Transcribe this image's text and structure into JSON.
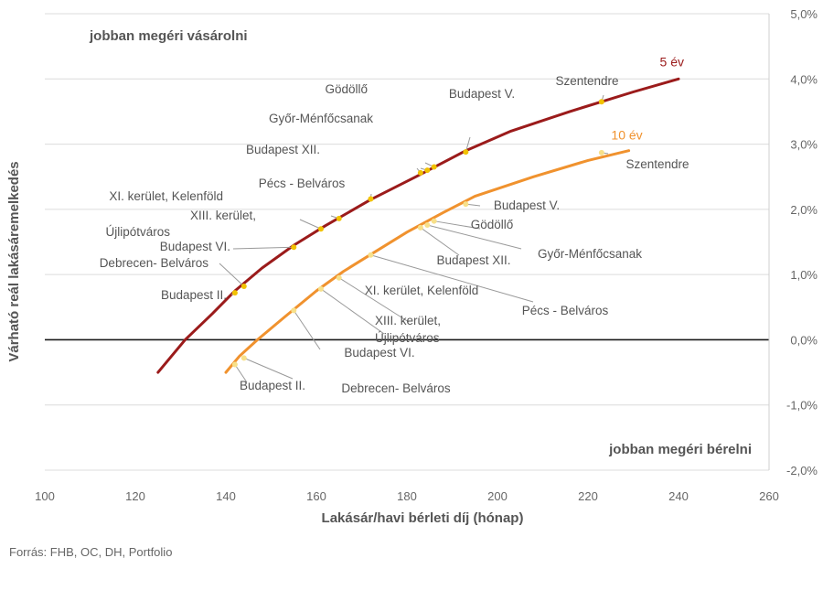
{
  "chart_data": {
    "type": "line",
    "xlabel": "Lakásár/havi bérleti díj (hónap)",
    "ylabel": "Várható reál lakásáremelkedés",
    "xlim": [
      100,
      260
    ],
    "ylim": [
      -2,
      5
    ],
    "x_ticks": [
      "100",
      "120",
      "140",
      "160",
      "180",
      "200",
      "220",
      "240",
      "260"
    ],
    "y_ticks": [
      "-2,0%",
      "-1,0%",
      "0,0%",
      "1,0%",
      "2,0%",
      "3,0%",
      "4,0%",
      "5,0%"
    ],
    "y_axis_position": "right",
    "grid": "horizontal",
    "annotations": {
      "top_left": "jobban megéri vásárolni",
      "bottom_right": "jobban megéri bérelni"
    },
    "series": [
      {
        "name": "5 év",
        "color": "#9b1b1b",
        "x": [
          125,
          131,
          137,
          142,
          148,
          155,
          162,
          172,
          182,
          193,
          203,
          216,
          230,
          240
        ],
        "y": [
          -0.5,
          0.0,
          0.4,
          0.75,
          1.1,
          1.45,
          1.75,
          2.15,
          2.5,
          2.9,
          3.2,
          3.5,
          3.8,
          4.0
        ]
      },
      {
        "name": "10 év",
        "color": "#f0922e",
        "x": [
          140,
          143,
          147,
          153,
          160,
          166,
          173,
          180,
          188,
          195,
          208,
          220,
          229
        ],
        "y": [
          -0.5,
          -0.25,
          0.0,
          0.35,
          0.75,
          1.05,
          1.35,
          1.65,
          1.95,
          2.2,
          2.5,
          2.75,
          2.9
        ]
      }
    ],
    "points": [
      {
        "series": 0,
        "label": "Budapest II.",
        "x": 142,
        "y": 0.72,
        "color": "#f2c200"
      },
      {
        "series": 0,
        "label": "Debrecen- Belváros",
        "x": 144,
        "y": 0.82,
        "color": "#f2c200"
      },
      {
        "series": 0,
        "label": "Budapest VI.",
        "x": 155,
        "y": 1.42,
        "color": "#f2c200"
      },
      {
        "series": 0,
        "label": "XIII. kerület, Újlipótváros",
        "x": 161,
        "y": 1.7,
        "color": "#f2c200"
      },
      {
        "series": 0,
        "label": "XI. kerület, Kelenföld",
        "x": 165,
        "y": 1.86,
        "color": "#f2c200"
      },
      {
        "series": 0,
        "label": "Pécs - Belváros",
        "x": 172,
        "y": 2.16,
        "color": "#f2c200"
      },
      {
        "series": 0,
        "label": "Budapest XII.",
        "x": 183,
        "y": 2.56,
        "color": "#f2c200"
      },
      {
        "series": 0,
        "label": "Győr-Ménfőcsanak",
        "x": 184.5,
        "y": 2.6,
        "color": "#f2c200"
      },
      {
        "series": 0,
        "label": "Gödöllő",
        "x": 186,
        "y": 2.65,
        "color": "#f2c200"
      },
      {
        "series": 0,
        "label": "Budapest V.",
        "x": 193,
        "y": 2.88,
        "color": "#f2c200"
      },
      {
        "series": 0,
        "label": "Szentendre",
        "x": 223,
        "y": 3.65,
        "color": "#f2c200"
      },
      {
        "series": 1,
        "label": "Budapest II.",
        "x": 142,
        "y": -0.38,
        "color": "#f7e08a"
      },
      {
        "series": 1,
        "label": "Debrecen- Belváros",
        "x": 144,
        "y": -0.28,
        "color": "#f7e08a"
      },
      {
        "series": 1,
        "label": "Budapest VI.",
        "x": 155,
        "y": 0.45,
        "color": "#f7e08a"
      },
      {
        "series": 1,
        "label": "XIII. kerület, Újlipótváros",
        "x": 161,
        "y": 0.78,
        "color": "#f7e08a"
      },
      {
        "series": 1,
        "label": "XI. kerület, Kelenföld",
        "x": 165,
        "y": 0.95,
        "color": "#f7e08a"
      },
      {
        "series": 1,
        "label": "Pécs - Belváros",
        "x": 172,
        "y": 1.3,
        "color": "#f7e08a"
      },
      {
        "series": 1,
        "label": "Budapest XII.",
        "x": 183,
        "y": 1.72,
        "color": "#f7e08a"
      },
      {
        "series": 1,
        "label": "Győr-Ménfőcsanak",
        "x": 184.5,
        "y": 1.76,
        "color": "#f7e08a"
      },
      {
        "series": 1,
        "label": "Gödöllő",
        "x": 186,
        "y": 1.82,
        "color": "#f7e08a"
      },
      {
        "series": 1,
        "label": "Budapest V.",
        "x": 193,
        "y": 2.08,
        "color": "#f7e08a"
      },
      {
        "series": 1,
        "label": "Szentendre",
        "x": 223,
        "y": 2.87,
        "color": "#f7e08a"
      }
    ],
    "source": "Forrás: FHB, OC, DH, Portfolio"
  }
}
